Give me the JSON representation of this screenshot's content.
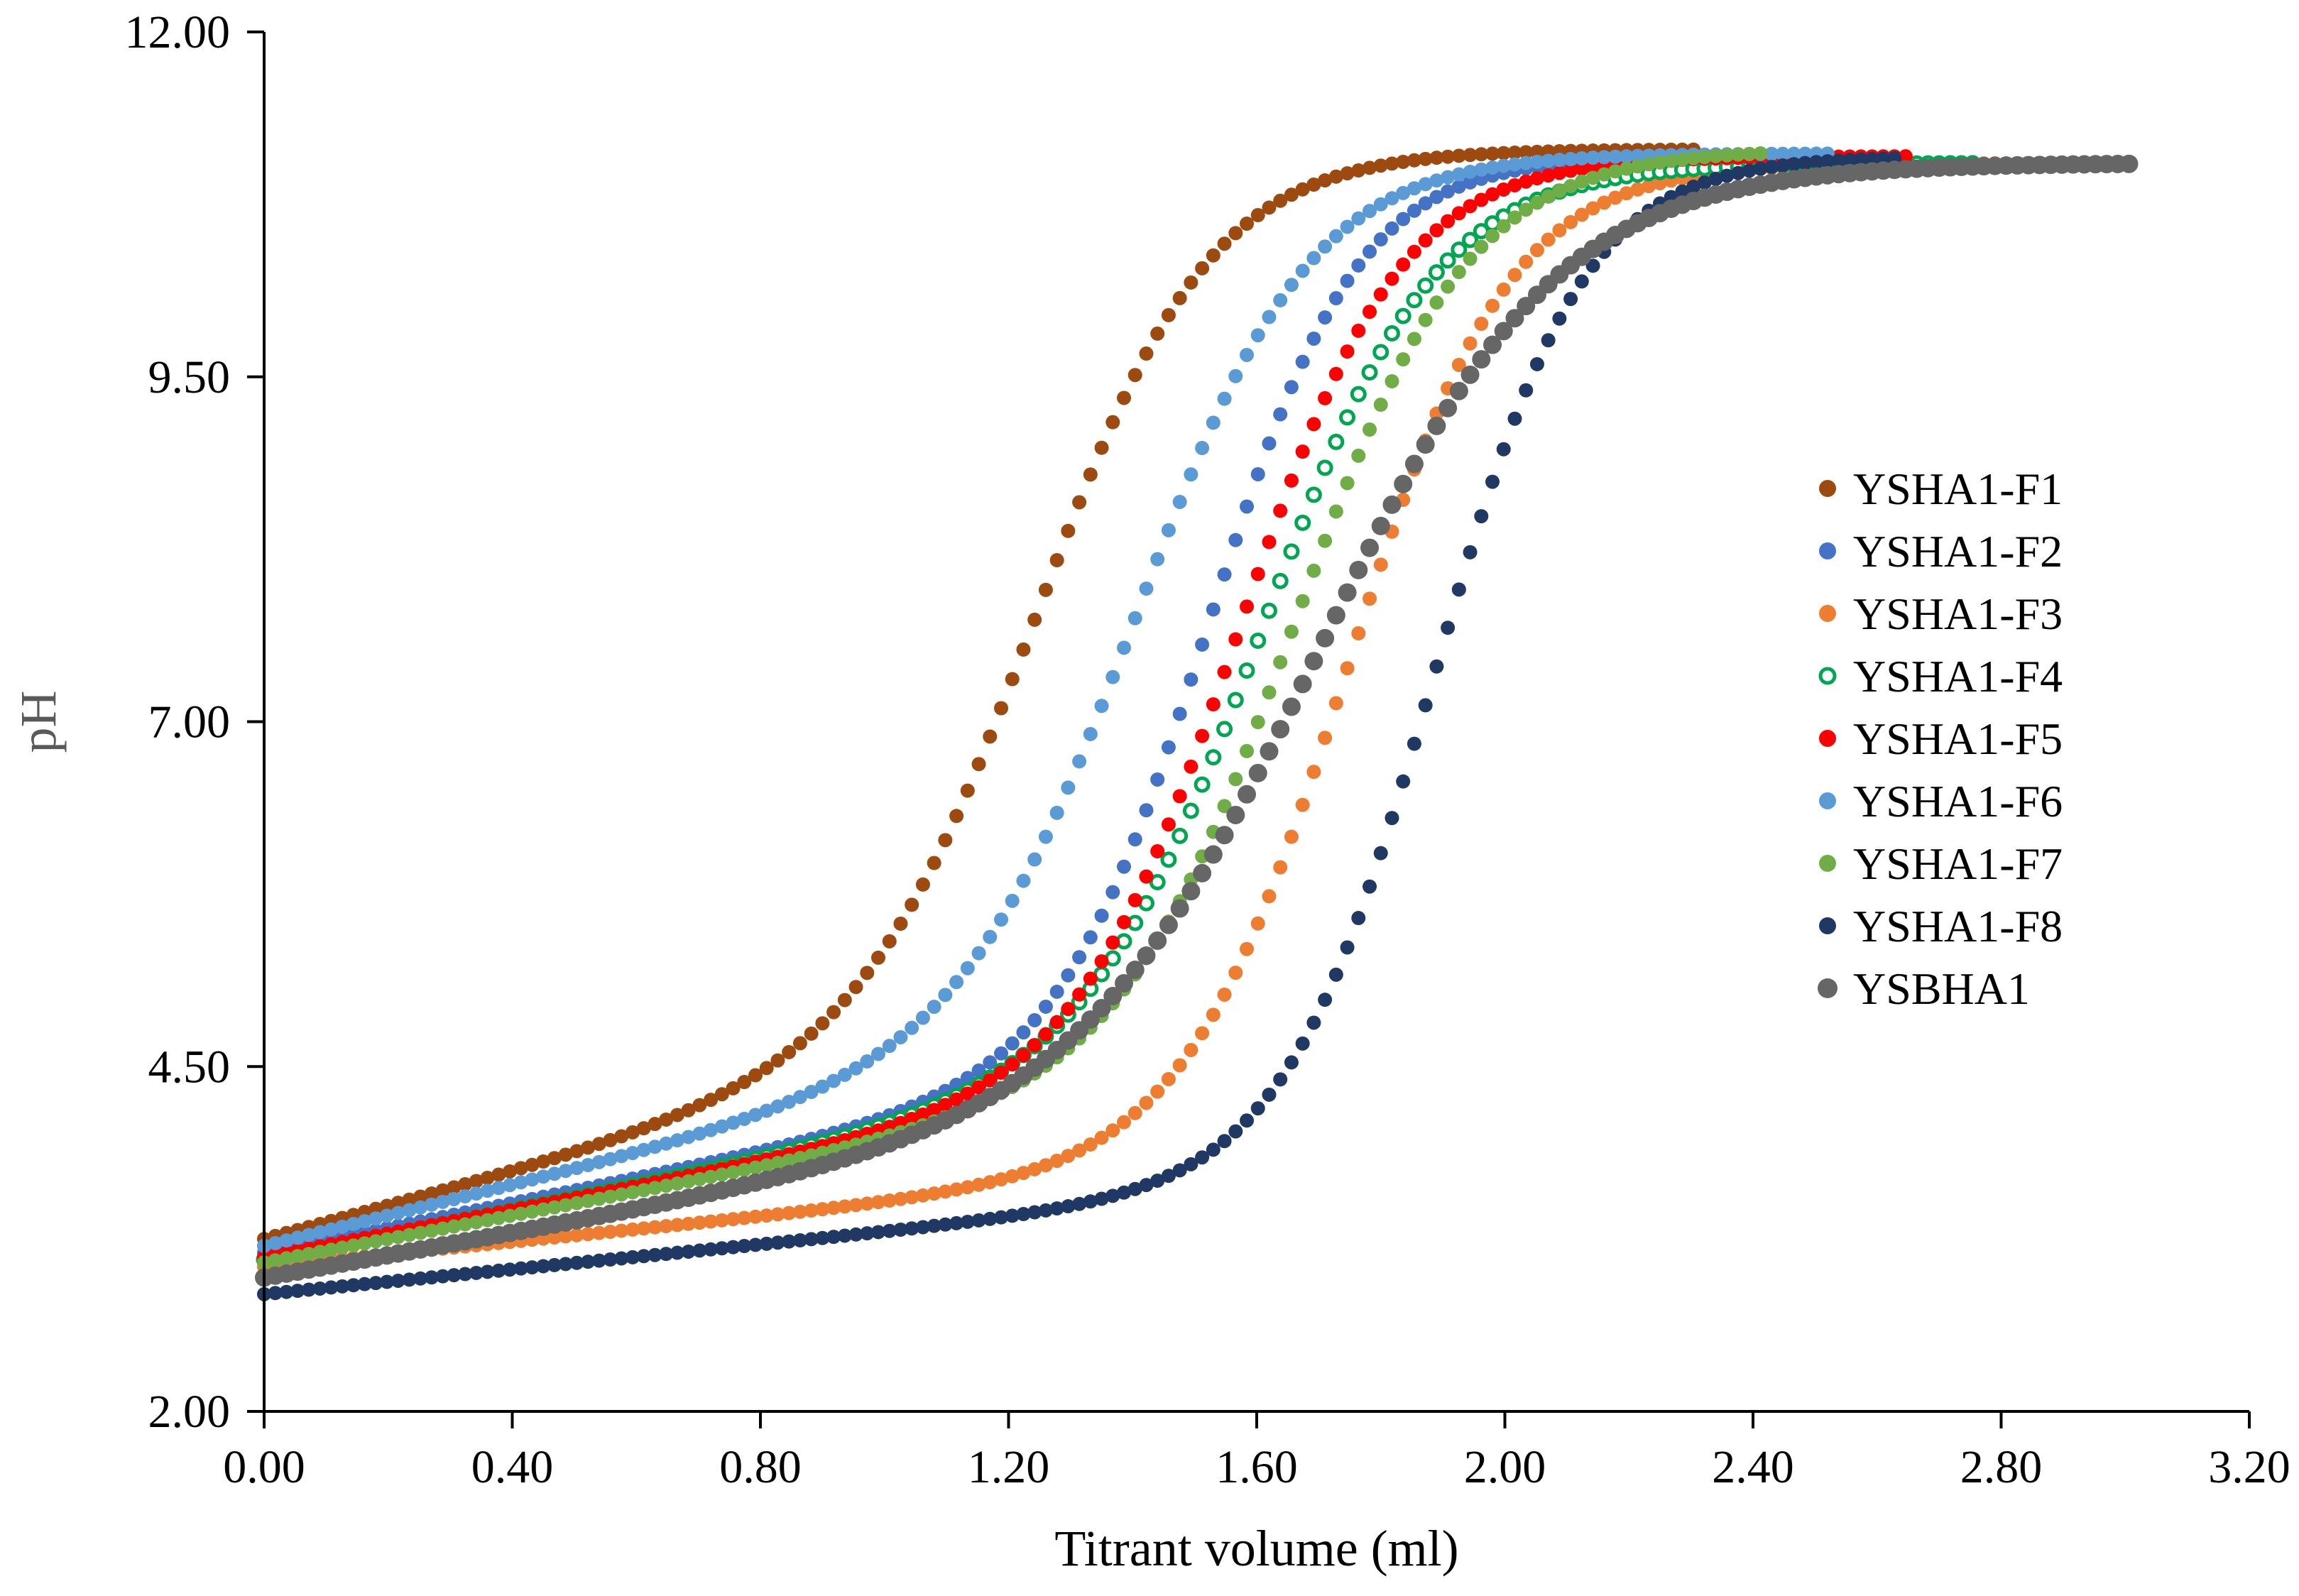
{
  "chart_data": {
    "type": "scatter",
    "title": "",
    "xlabel": "Titrant volume (ml)",
    "ylabel": "pH",
    "xlim": [
      0,
      3.2
    ],
    "ylim": [
      2,
      12
    ],
    "x_ticks": [
      "0.00",
      "0.40",
      "0.80",
      "1.20",
      "1.60",
      "2.00",
      "2.40",
      "2.80",
      "3.20"
    ],
    "y_ticks": [
      "2.00",
      "4.50",
      "7.00",
      "9.50",
      "12.00"
    ],
    "grid": false,
    "legend_position": "right",
    "series": [
      {
        "name": "YSHA1-F1",
        "color": "#9C4A0F",
        "marker": "filled",
        "ph0": 3.25,
        "x_end": 2.32,
        "midpoint": 1.26,
        "width": 0.14,
        "ph_high": 11.15,
        "initial_slope": 1.2
      },
      {
        "name": "YSHA1-F2",
        "color": "#4472C4",
        "marker": "filled",
        "ph0": 3.15,
        "x_end": 2.48,
        "midpoint": 1.53,
        "width": 0.12,
        "ph_high": 11.1,
        "initial_slope": 0.9
      },
      {
        "name": "YSHA1-F3",
        "color": "#ED7D31",
        "marker": "filled",
        "ph0": 3.05,
        "x_end": 2.82,
        "midpoint": 1.75,
        "width": 0.13,
        "ph_high": 11.05,
        "initial_slope": 0.45
      },
      {
        "name": "YSHA1-F4",
        "color": "#00A651",
        "marker": "hollow",
        "ph0": 3.1,
        "x_end": 2.76,
        "midpoint": 1.62,
        "width": 0.14,
        "ph_high": 11.05,
        "initial_slope": 0.9
      },
      {
        "name": "YSHA1-F5",
        "color": "#FF0000",
        "marker": "filled",
        "ph0": 3.12,
        "x_end": 2.66,
        "midpoint": 1.58,
        "width": 0.13,
        "ph_high": 11.1,
        "initial_slope": 0.85
      },
      {
        "name": "YSHA1-F6",
        "color": "#5B9BD5",
        "marker": "filled",
        "ph0": 3.2,
        "x_end": 2.52,
        "midpoint": 1.42,
        "width": 0.14,
        "ph_high": 11.12,
        "initial_slope": 1.1
      },
      {
        "name": "YSHA1-F7",
        "color": "#70AD47",
        "marker": "filled",
        "ph0": 3.08,
        "x_end": 2.42,
        "midpoint": 1.67,
        "width": 0.14,
        "ph_high": 11.15,
        "initial_slope": 0.85
      },
      {
        "name": "YSHA1-F8",
        "color": "#203864",
        "marker": "filled",
        "ph0": 2.85,
        "x_end": 2.64,
        "midpoint": 1.89,
        "width": 0.12,
        "ph_high": 11.1,
        "initial_slope": 0.45
      },
      {
        "name": "YSBHA1",
        "color": "#666666",
        "marker": "filled",
        "ph0": 2.97,
        "x_end": 3.01,
        "midpoint": 1.72,
        "width": 0.19,
        "ph_high": 11.05,
        "initial_slope": 0.8
      }
    ]
  }
}
